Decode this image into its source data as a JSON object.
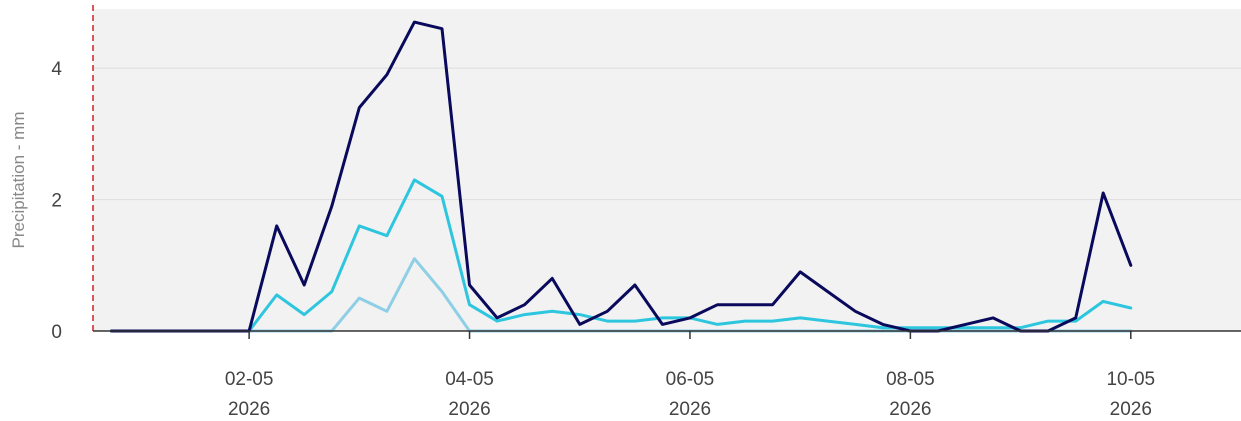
{
  "chart_data": {
    "type": "line",
    "ylabel": "Precipitation - mm",
    "xlabel": "",
    "title": "",
    "ylim": [
      0,
      4.9
    ],
    "xlim": [
      "2026-04-30T14:00",
      "2026-05-11T00:00"
    ],
    "yticks": [
      0,
      2,
      4
    ],
    "xticks": [
      {
        "date": "2026-05-02",
        "line1": "02-05",
        "line2": "2026"
      },
      {
        "date": "2026-05-04",
        "line1": "04-05",
        "line2": "2026"
      },
      {
        "date": "2026-05-06",
        "line1": "06-05",
        "line2": "2026"
      },
      {
        "date": "2026-05-08",
        "line1": "08-05",
        "line2": "2026"
      },
      {
        "date": "2026-05-10",
        "line1": "10-05",
        "line2": "2026"
      }
    ],
    "grid": "horizontal",
    "marker": {
      "date": "2026-04-30T13:00",
      "style": "dashed",
      "color": "#cc2222"
    },
    "colors": {
      "plot_bg": "#f2f2f2",
      "grid": "#dddddd",
      "axis": "#333333"
    },
    "series": [
      {
        "color": "#0a0a5c",
        "points": [
          [
            "2026-04-30T18:00",
            0
          ],
          [
            "2026-05-02T00:00",
            0
          ],
          [
            "2026-05-02T06:00",
            1.6
          ],
          [
            "2026-05-02T12:00",
            0.7
          ],
          [
            "2026-05-02T18:00",
            1.9
          ],
          [
            "2026-05-03T00:00",
            3.4
          ],
          [
            "2026-05-03T06:00",
            3.9
          ],
          [
            "2026-05-03T12:00",
            4.7
          ],
          [
            "2026-05-03T18:00",
            4.6
          ],
          [
            "2026-05-04T00:00",
            0.7
          ],
          [
            "2026-05-04T06:00",
            0.2
          ],
          [
            "2026-05-04T12:00",
            0.4
          ],
          [
            "2026-05-04T18:00",
            0.8
          ],
          [
            "2026-05-05T00:00",
            0.1
          ],
          [
            "2026-05-05T06:00",
            0.3
          ],
          [
            "2026-05-05T12:00",
            0.7
          ],
          [
            "2026-05-05T18:00",
            0.1
          ],
          [
            "2026-05-06T00:00",
            0.2
          ],
          [
            "2026-05-06T06:00",
            0.4
          ],
          [
            "2026-05-06T12:00",
            0.4
          ],
          [
            "2026-05-06T18:00",
            0.4
          ],
          [
            "2026-05-07T00:00",
            0.9
          ],
          [
            "2026-05-07T06:00",
            0.6
          ],
          [
            "2026-05-07T12:00",
            0.3
          ],
          [
            "2026-05-07T18:00",
            0.1
          ],
          [
            "2026-05-08T00:00",
            0
          ],
          [
            "2026-05-08T06:00",
            0
          ],
          [
            "2026-05-08T12:00",
            0.1
          ],
          [
            "2026-05-08T18:00",
            0.2
          ],
          [
            "2026-05-09T00:00",
            0
          ],
          [
            "2026-05-09T06:00",
            0
          ],
          [
            "2026-05-09T12:00",
            0.2
          ],
          [
            "2026-05-09T18:00",
            2.1
          ],
          [
            "2026-05-10T00:00",
            1.0
          ]
        ]
      },
      {
        "color": "#2ec6de",
        "points": [
          [
            "2026-04-30T18:00",
            0
          ],
          [
            "2026-05-02T00:00",
            0
          ],
          [
            "2026-05-02T06:00",
            0.55
          ],
          [
            "2026-05-02T12:00",
            0.25
          ],
          [
            "2026-05-02T18:00",
            0.6
          ],
          [
            "2026-05-03T00:00",
            1.6
          ],
          [
            "2026-05-03T06:00",
            1.45
          ],
          [
            "2026-05-03T12:00",
            2.3
          ],
          [
            "2026-05-03T18:00",
            2.05
          ],
          [
            "2026-05-04T00:00",
            0.4
          ],
          [
            "2026-05-04T06:00",
            0.15
          ],
          [
            "2026-05-04T12:00",
            0.25
          ],
          [
            "2026-05-04T18:00",
            0.3
          ],
          [
            "2026-05-05T00:00",
            0.25
          ],
          [
            "2026-05-05T06:00",
            0.15
          ],
          [
            "2026-05-05T12:00",
            0.15
          ],
          [
            "2026-05-05T18:00",
            0.2
          ],
          [
            "2026-05-06T00:00",
            0.2
          ],
          [
            "2026-05-06T06:00",
            0.1
          ],
          [
            "2026-05-06T12:00",
            0.15
          ],
          [
            "2026-05-06T18:00",
            0.15
          ],
          [
            "2026-05-07T00:00",
            0.2
          ],
          [
            "2026-05-07T06:00",
            0.15
          ],
          [
            "2026-05-07T12:00",
            0.1
          ],
          [
            "2026-05-07T18:00",
            0.05
          ],
          [
            "2026-05-08T00:00",
            0.05
          ],
          [
            "2026-05-08T06:00",
            0.05
          ],
          [
            "2026-05-08T12:00",
            0.05
          ],
          [
            "2026-05-08T18:00",
            0.05
          ],
          [
            "2026-05-09T00:00",
            0.05
          ],
          [
            "2026-05-09T06:00",
            0.15
          ],
          [
            "2026-05-09T12:00",
            0.15
          ],
          [
            "2026-05-09T18:00",
            0.45
          ],
          [
            "2026-05-10T00:00",
            0.35
          ]
        ]
      },
      {
        "color": "#8ecfe6",
        "points": [
          [
            "2026-04-30T18:00",
            0
          ],
          [
            "2026-05-02T18:00",
            0
          ],
          [
            "2026-05-03T00:00",
            0.5
          ],
          [
            "2026-05-03T06:00",
            0.3
          ],
          [
            "2026-05-03T12:00",
            1.1
          ],
          [
            "2026-05-03T18:00",
            0.6
          ],
          [
            "2026-05-04T00:00",
            0
          ],
          [
            "2026-05-10T00:00",
            0
          ]
        ]
      }
    ]
  }
}
